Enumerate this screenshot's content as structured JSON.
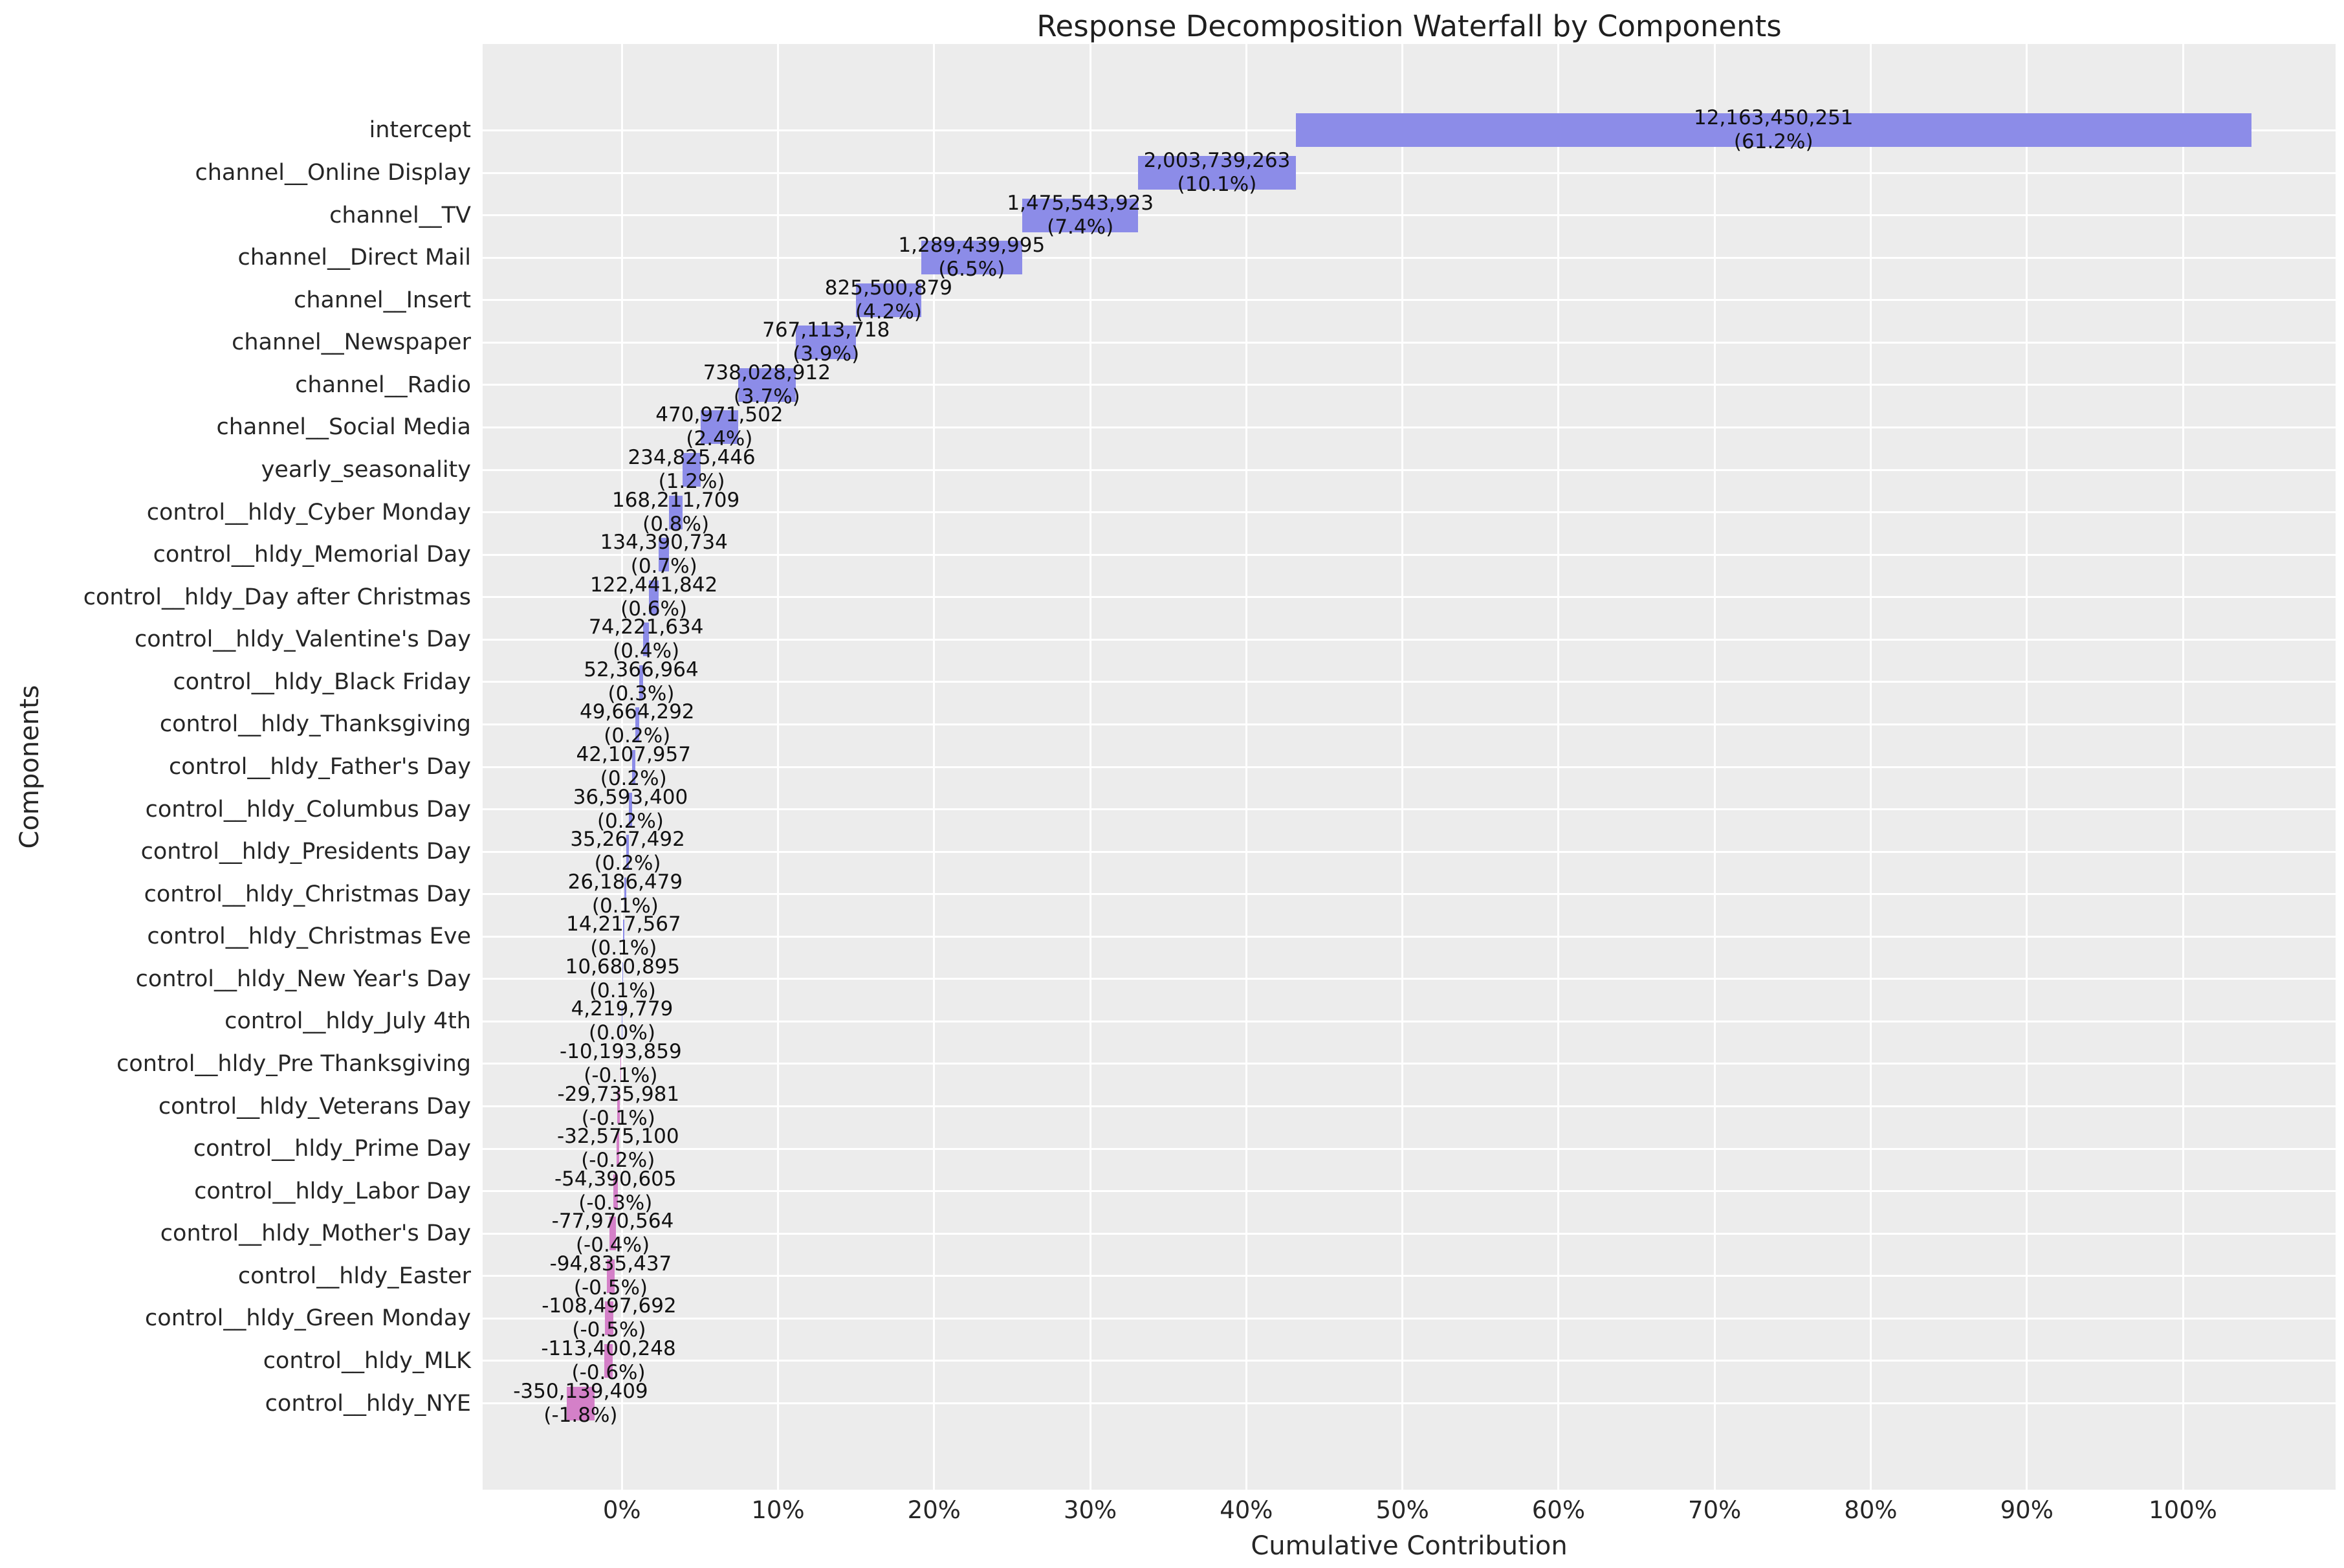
{
  "chart_data": {
    "type": "bar",
    "subtype": "horizontal-waterfall",
    "title": "Response Decomposition Waterfall by Components",
    "xlabel": "Cumulative Contribution",
    "ylabel": "Components",
    "xlim": [
      -8.92,
      109.78
    ],
    "xticks": [
      0,
      10,
      20,
      30,
      40,
      50,
      60,
      70,
      80,
      90,
      100
    ],
    "xtick_suffix": "%",
    "grid": true,
    "legend": null,
    "colors": {
      "positive_bar": "#8c8ce8",
      "negative_bar": "#d480c8",
      "axes_background": "#ececec",
      "gridline": "#ffffff",
      "figure_background": "#ffffff",
      "text": "#262626"
    },
    "components": [
      {
        "label": "intercept",
        "value": 12163450251,
        "value_label": "12,163,450,251",
        "pct_label": "(61.2%)",
        "start": 43.163,
        "end": 104.387,
        "sign": "positive"
      },
      {
        "label": "channel__Online Display",
        "value": 2003739263,
        "value_label": "2,003,739,263",
        "pct_label": "(10.1%)",
        "start": 33.078,
        "end": 43.163,
        "sign": "positive"
      },
      {
        "label": "channel__TV",
        "value": 1475543923,
        "value_label": "1,475,543,923",
        "pct_label": "(7.4%)",
        "start": 25.651,
        "end": 33.078,
        "sign": "positive"
      },
      {
        "label": "channel__Direct Mail",
        "value": 1289439995,
        "value_label": "1,289,439,995",
        "pct_label": "(6.5%)",
        "start": 19.161,
        "end": 25.651,
        "sign": "positive"
      },
      {
        "label": "channel__Insert",
        "value": 825500879,
        "value_label": "825,500,879",
        "pct_label": "(4.2%)",
        "start": 15.006,
        "end": 19.161,
        "sign": "positive"
      },
      {
        "label": "channel__Newspaper",
        "value": 767113718,
        "value_label": "767,113,718",
        "pct_label": "(3.9%)",
        "start": 11.145,
        "end": 15.006,
        "sign": "positive"
      },
      {
        "label": "channel__Radio",
        "value": 738028912,
        "value_label": "738,028,912",
        "pct_label": "(3.7%)",
        "start": 7.431,
        "end": 11.145,
        "sign": "positive"
      },
      {
        "label": "channel__Social Media",
        "value": 470971502,
        "value_label": "470,971,502",
        "pct_label": "(2.4%)",
        "start": 5.06,
        "end": 7.431,
        "sign": "positive"
      },
      {
        "label": "yearly_seasonality",
        "value": 234825446,
        "value_label": "234,825,446",
        "pct_label": "(1.2%)",
        "start": 3.878,
        "end": 5.06,
        "sign": "positive"
      },
      {
        "label": "control__hldy_Cyber Monday",
        "value": 168211709,
        "value_label": "168,211,709",
        "pct_label": "(0.8%)",
        "start": 3.032,
        "end": 3.878,
        "sign": "positive"
      },
      {
        "label": "control__hldy_Memorial Day",
        "value": 134390734,
        "value_label": "134,390,734",
        "pct_label": "(0.7%)",
        "start": 2.355,
        "end": 3.032,
        "sign": "positive"
      },
      {
        "label": "control__hldy_Day after Christmas",
        "value": 122441842,
        "value_label": "122,441,842",
        "pct_label": "(0.6%)",
        "start": 1.739,
        "end": 2.355,
        "sign": "positive"
      },
      {
        "label": "control__hldy_Valentine's Day",
        "value": 74221634,
        "value_label": "74,221,634",
        "pct_label": "(0.4%)",
        "start": 1.366,
        "end": 1.739,
        "sign": "positive"
      },
      {
        "label": "control__hldy_Black Friday",
        "value": 52366964,
        "value_label": "52,366,964",
        "pct_label": "(0.3%)",
        "start": 1.102,
        "end": 1.366,
        "sign": "positive"
      },
      {
        "label": "control__hldy_Thanksgiving",
        "value": 49664292,
        "value_label": "49,664,292",
        "pct_label": "(0.2%)",
        "start": 0.852,
        "end": 1.102,
        "sign": "positive"
      },
      {
        "label": "control__hldy_Father's Day",
        "value": 42107957,
        "value_label": "42,107,957",
        "pct_label": "(0.2%)",
        "start": 0.64,
        "end": 0.852,
        "sign": "positive"
      },
      {
        "label": "control__hldy_Columbus Day",
        "value": 36593400,
        "value_label": "36,593,400",
        "pct_label": "(0.2%)",
        "start": 0.456,
        "end": 0.64,
        "sign": "positive"
      },
      {
        "label": "control__hldy_Presidents Day",
        "value": 35267492,
        "value_label": "35,267,492",
        "pct_label": "(0.2%)",
        "start": 0.278,
        "end": 0.456,
        "sign": "positive"
      },
      {
        "label": "control__hldy_Christmas Day",
        "value": 26186479,
        "value_label": "26,186,479",
        "pct_label": "(0.1%)",
        "start": 0.147,
        "end": 0.278,
        "sign": "positive"
      },
      {
        "label": "control__hldy_Christmas Eve",
        "value": 14217567,
        "value_label": "14,217,567",
        "pct_label": "(0.1%)",
        "start": 0.075,
        "end": 0.147,
        "sign": "positive"
      },
      {
        "label": "control__hldy_New Year's Day",
        "value": 10680895,
        "value_label": "10,680,895",
        "pct_label": "(0.1%)",
        "start": 0.021,
        "end": 0.075,
        "sign": "positive"
      },
      {
        "label": "control__hldy_July 4th",
        "value": 4219779,
        "value_label": "4,219,779",
        "pct_label": "(0.0%)",
        "start": 0.0,
        "end": 0.021,
        "sign": "positive"
      },
      {
        "label": "control__hldy_Pre Thanksgiving",
        "value": -10193859,
        "value_label": "-10,193,859",
        "pct_label": "(-0.1%)",
        "start": -0.103,
        "end": -0.051,
        "sign": "negative"
      },
      {
        "label": "control__hldy_Veterans Day",
        "value": -29735981,
        "value_label": "-29,735,981",
        "pct_label": "(-0.1%)",
        "start": -0.299,
        "end": -0.15,
        "sign": "negative"
      },
      {
        "label": "control__hldy_Prime Day",
        "value": -32575100,
        "value_label": "-32,575,100",
        "pct_label": "(-0.2%)",
        "start": -0.328,
        "end": -0.164,
        "sign": "negative"
      },
      {
        "label": "control__hldy_Labor Day",
        "value": -54390605,
        "value_label": "-54,390,605",
        "pct_label": "(-0.3%)",
        "start": -0.548,
        "end": -0.274,
        "sign": "negative"
      },
      {
        "label": "control__hldy_Mother's Day",
        "value": -77970564,
        "value_label": "-77,970,564",
        "pct_label": "(-0.4%)",
        "start": -0.785,
        "end": -0.392,
        "sign": "negative"
      },
      {
        "label": "control__hldy_Easter",
        "value": -94835437,
        "value_label": "-94,835,437",
        "pct_label": "(-0.5%)",
        "start": -0.955,
        "end": -0.477,
        "sign": "negative"
      },
      {
        "label": "control__hldy_Green Monday",
        "value": -108497692,
        "value_label": "-108,497,692",
        "pct_label": "(-0.5%)",
        "start": -1.092,
        "end": -0.546,
        "sign": "negative"
      },
      {
        "label": "control__hldy_MLK",
        "value": -113400248,
        "value_label": "-113,400,248",
        "pct_label": "(-0.6%)",
        "start": -1.142,
        "end": -0.571,
        "sign": "negative"
      },
      {
        "label": "control__hldy_NYE",
        "value": -350139409,
        "value_label": "-350,139,409",
        "pct_label": "(-1.8%)",
        "start": -3.525,
        "end": -1.762,
        "sign": "negative"
      }
    ]
  }
}
